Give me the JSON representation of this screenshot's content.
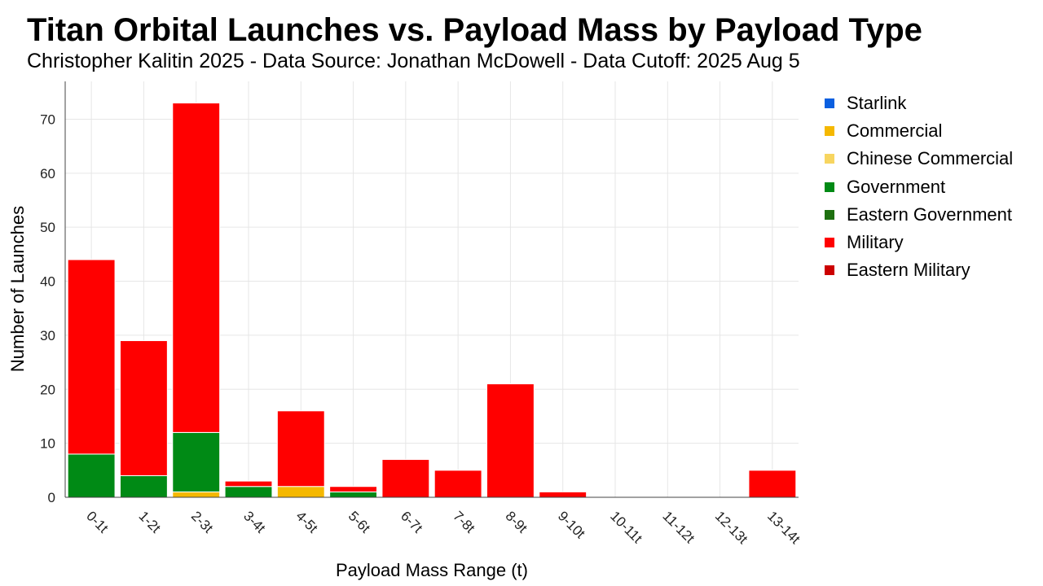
{
  "title": "Titan Orbital Launches vs. Payload Mass by Payload Type",
  "subtitle": "Christopher Kalitin 2025 - Data Source: Jonathan McDowell - Data Cutoff: 2025 Aug 5",
  "chart_data": {
    "type": "bar",
    "stacked": true,
    "xlabel": "Payload Mass Range (t)",
    "ylabel": "Number of Launches",
    "ylim": [
      0,
      77
    ],
    "yticks": [
      0,
      10,
      20,
      30,
      40,
      50,
      60,
      70
    ],
    "grid": true,
    "legend_position": "right",
    "categories": [
      "0-1t",
      "1-2t",
      "2-3t",
      "3-4t",
      "4-5t",
      "5-6t",
      "6-7t",
      "7-8t",
      "8-9t",
      "9-10t",
      "10-11t",
      "11-12t",
      "12-13t",
      "13-14t"
    ],
    "series": [
      {
        "name": "Starlink",
        "color": "#0a5fe0",
        "values": [
          0,
          0,
          0,
          0,
          0,
          0,
          0,
          0,
          0,
          0,
          0,
          0,
          0,
          0
        ]
      },
      {
        "name": "Commercial",
        "color": "#f5b800",
        "values": [
          0,
          0,
          1,
          0,
          2,
          0,
          0,
          0,
          0,
          0,
          0,
          0,
          0,
          0
        ]
      },
      {
        "name": "Chinese Commercial",
        "color": "#f7d560",
        "values": [
          0,
          0,
          0,
          0,
          0,
          0,
          0,
          0,
          0,
          0,
          0,
          0,
          0,
          0
        ]
      },
      {
        "name": "Government",
        "color": "#008a15",
        "values": [
          8,
          4,
          11,
          2,
          0,
          1,
          0,
          0,
          0,
          0,
          0,
          0,
          0,
          0
        ]
      },
      {
        "name": "Eastern Government",
        "color": "#1e7010",
        "values": [
          0,
          0,
          0,
          0,
          0,
          0,
          0,
          0,
          0,
          0,
          0,
          0,
          0,
          0
        ]
      },
      {
        "name": "Military",
        "color": "#ff0000",
        "values": [
          36,
          25,
          61,
          1,
          14,
          1,
          7,
          5,
          21,
          1,
          0,
          0,
          0,
          5
        ]
      },
      {
        "name": "Eastern Military",
        "color": "#cc0000",
        "values": [
          0,
          0,
          0,
          0,
          0,
          0,
          0,
          0,
          0,
          0,
          0,
          0,
          0,
          0
        ]
      }
    ]
  }
}
